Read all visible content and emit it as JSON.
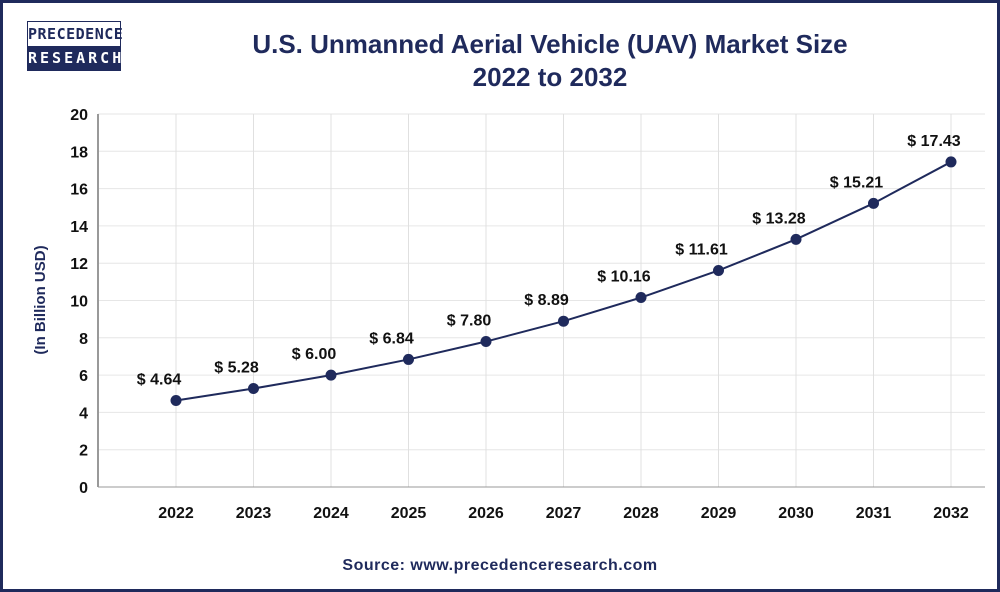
{
  "logo": {
    "line1": "PRECEDENCE",
    "line2": "RESEARCH"
  },
  "source": "Source: www.precedenceresearch.com",
  "chart_data": {
    "type": "line",
    "title": "U.S. Unmanned Aerial Vehicle (UAV) Market Size",
    "subtitle": "2022 to 2032",
    "xlabel": "",
    "ylabel": "(In Billion USD)",
    "categories": [
      "2022",
      "2023",
      "2024",
      "2025",
      "2026",
      "2027",
      "2028",
      "2029",
      "2030",
      "2031",
      "2032"
    ],
    "values": [
      4.64,
      5.28,
      6.0,
      6.84,
      7.8,
      8.89,
      10.16,
      11.61,
      13.28,
      15.21,
      17.43
    ],
    "data_labels": [
      "$ 4.64",
      "$ 5.28",
      "$ 6.00",
      "$ 6.84",
      "$ 7.80",
      "$ 8.89",
      "$ 10.16",
      "$ 11.61",
      "$ 13.28",
      "$ 15.21",
      "$ 17.43"
    ],
    "yticks": [
      "0",
      "2",
      "4",
      "6",
      "8",
      "10",
      "12",
      "14",
      "16",
      "18",
      "20"
    ],
    "ylim": [
      0,
      20
    ],
    "grid": true,
    "color": "#1f2a5c"
  }
}
